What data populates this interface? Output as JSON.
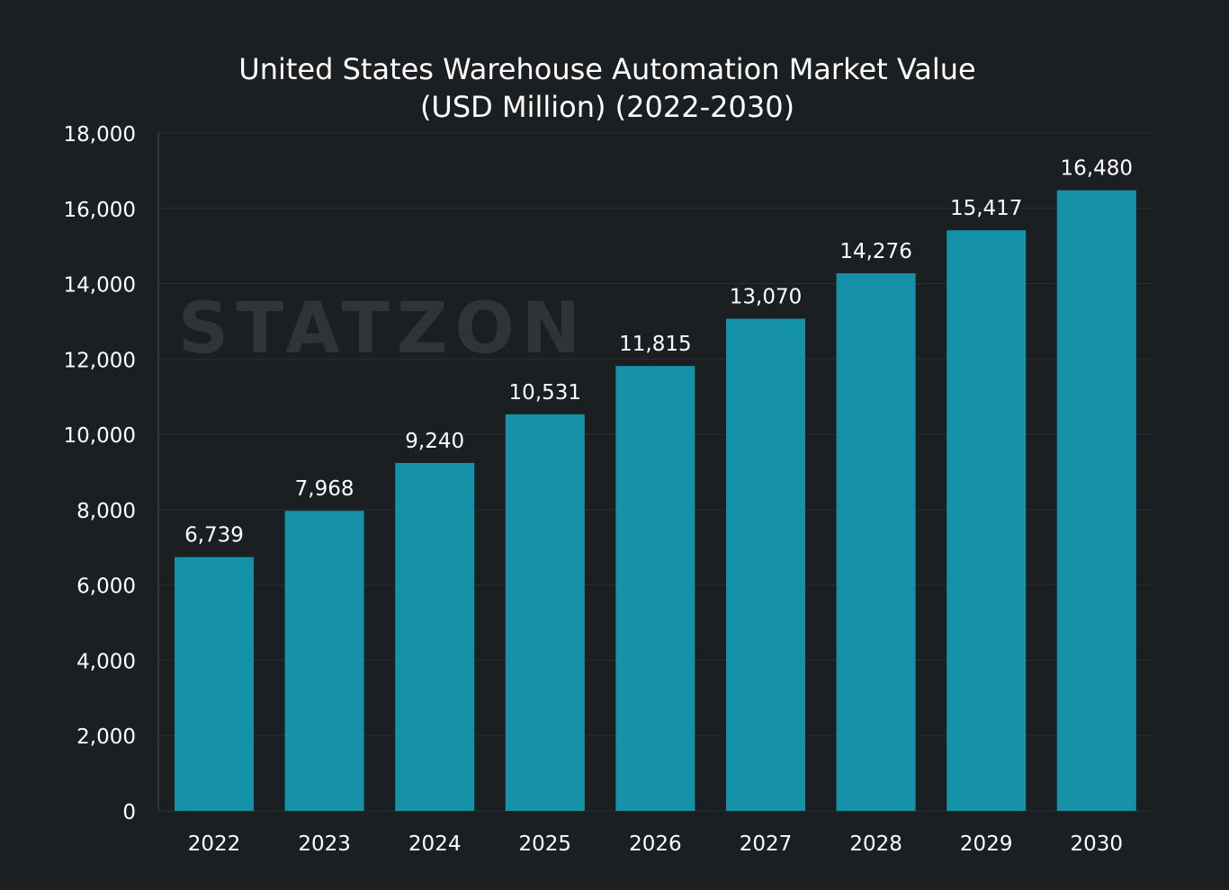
{
  "chart_data": {
    "type": "bar",
    "title_line1": "United States Warehouse Automation Market Value",
    "title_line2": "(USD Million) (2022-2030)",
    "xlabel": "",
    "ylabel": "",
    "categories": [
      "2022",
      "2023",
      "2024",
      "2025",
      "2026",
      "2027",
      "2028",
      "2029",
      "2030"
    ],
    "values": [
      6739,
      7968,
      9240,
      10531,
      11815,
      13070,
      14276,
      15417,
      16480
    ],
    "data_labels": [
      "6,739",
      "7,968",
      "9,240",
      "10,531",
      "11,815",
      "13,070",
      "14,276",
      "15,417",
      "16,480"
    ],
    "ylim": [
      0,
      18000
    ],
    "yticks": [
      0,
      2000,
      4000,
      6000,
      8000,
      10000,
      12000,
      14000,
      16000,
      18000
    ],
    "ytick_labels": [
      "0",
      "2,000",
      "4,000",
      "6,000",
      "8,000",
      "10,000",
      "12,000",
      "14,000",
      "16,000",
      "18,000"
    ],
    "grid": true,
    "legend": "none",
    "colors": {
      "bar": "#1592a8",
      "background": "#1c1f22",
      "grid": "#2a2e32",
      "text": "#ffffff"
    }
  },
  "watermark": "STATZON"
}
